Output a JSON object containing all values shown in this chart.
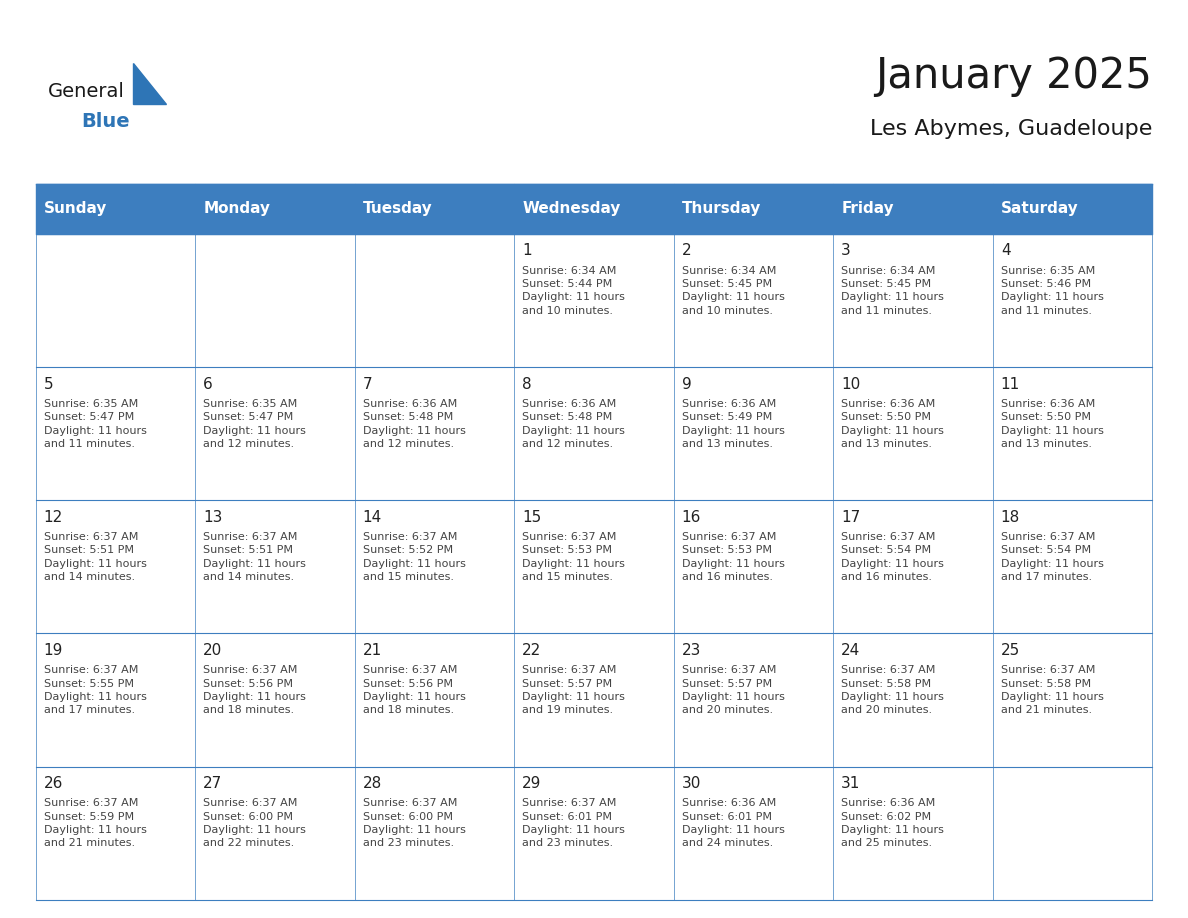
{
  "title": "January 2025",
  "subtitle": "Les Abymes, Guadeloupe",
  "days_of_week": [
    "Sunday",
    "Monday",
    "Tuesday",
    "Wednesday",
    "Thursday",
    "Friday",
    "Saturday"
  ],
  "header_bg_color": "#3d7ebf",
  "header_text_color": "#ffffff",
  "cell_bg_color": "#ffffff",
  "border_color": "#3d7ebf",
  "title_color": "#1a1a1a",
  "subtitle_color": "#1a1a1a",
  "weeks": [
    [
      {
        "day": 0,
        "info": ""
      },
      {
        "day": 0,
        "info": ""
      },
      {
        "day": 0,
        "info": ""
      },
      {
        "day": 1,
        "info": "Sunrise: 6:34 AM\nSunset: 5:44 PM\nDaylight: 11 hours\nand 10 minutes."
      },
      {
        "day": 2,
        "info": "Sunrise: 6:34 AM\nSunset: 5:45 PM\nDaylight: 11 hours\nand 10 minutes."
      },
      {
        "day": 3,
        "info": "Sunrise: 6:34 AM\nSunset: 5:45 PM\nDaylight: 11 hours\nand 11 minutes."
      },
      {
        "day": 4,
        "info": "Sunrise: 6:35 AM\nSunset: 5:46 PM\nDaylight: 11 hours\nand 11 minutes."
      }
    ],
    [
      {
        "day": 5,
        "info": "Sunrise: 6:35 AM\nSunset: 5:47 PM\nDaylight: 11 hours\nand 11 minutes."
      },
      {
        "day": 6,
        "info": "Sunrise: 6:35 AM\nSunset: 5:47 PM\nDaylight: 11 hours\nand 12 minutes."
      },
      {
        "day": 7,
        "info": "Sunrise: 6:36 AM\nSunset: 5:48 PM\nDaylight: 11 hours\nand 12 minutes."
      },
      {
        "day": 8,
        "info": "Sunrise: 6:36 AM\nSunset: 5:48 PM\nDaylight: 11 hours\nand 12 minutes."
      },
      {
        "day": 9,
        "info": "Sunrise: 6:36 AM\nSunset: 5:49 PM\nDaylight: 11 hours\nand 13 minutes."
      },
      {
        "day": 10,
        "info": "Sunrise: 6:36 AM\nSunset: 5:50 PM\nDaylight: 11 hours\nand 13 minutes."
      },
      {
        "day": 11,
        "info": "Sunrise: 6:36 AM\nSunset: 5:50 PM\nDaylight: 11 hours\nand 13 minutes."
      }
    ],
    [
      {
        "day": 12,
        "info": "Sunrise: 6:37 AM\nSunset: 5:51 PM\nDaylight: 11 hours\nand 14 minutes."
      },
      {
        "day": 13,
        "info": "Sunrise: 6:37 AM\nSunset: 5:51 PM\nDaylight: 11 hours\nand 14 minutes."
      },
      {
        "day": 14,
        "info": "Sunrise: 6:37 AM\nSunset: 5:52 PM\nDaylight: 11 hours\nand 15 minutes."
      },
      {
        "day": 15,
        "info": "Sunrise: 6:37 AM\nSunset: 5:53 PM\nDaylight: 11 hours\nand 15 minutes."
      },
      {
        "day": 16,
        "info": "Sunrise: 6:37 AM\nSunset: 5:53 PM\nDaylight: 11 hours\nand 16 minutes."
      },
      {
        "day": 17,
        "info": "Sunrise: 6:37 AM\nSunset: 5:54 PM\nDaylight: 11 hours\nand 16 minutes."
      },
      {
        "day": 18,
        "info": "Sunrise: 6:37 AM\nSunset: 5:54 PM\nDaylight: 11 hours\nand 17 minutes."
      }
    ],
    [
      {
        "day": 19,
        "info": "Sunrise: 6:37 AM\nSunset: 5:55 PM\nDaylight: 11 hours\nand 17 minutes."
      },
      {
        "day": 20,
        "info": "Sunrise: 6:37 AM\nSunset: 5:56 PM\nDaylight: 11 hours\nand 18 minutes."
      },
      {
        "day": 21,
        "info": "Sunrise: 6:37 AM\nSunset: 5:56 PM\nDaylight: 11 hours\nand 18 minutes."
      },
      {
        "day": 22,
        "info": "Sunrise: 6:37 AM\nSunset: 5:57 PM\nDaylight: 11 hours\nand 19 minutes."
      },
      {
        "day": 23,
        "info": "Sunrise: 6:37 AM\nSunset: 5:57 PM\nDaylight: 11 hours\nand 20 minutes."
      },
      {
        "day": 24,
        "info": "Sunrise: 6:37 AM\nSunset: 5:58 PM\nDaylight: 11 hours\nand 20 minutes."
      },
      {
        "day": 25,
        "info": "Sunrise: 6:37 AM\nSunset: 5:58 PM\nDaylight: 11 hours\nand 21 minutes."
      }
    ],
    [
      {
        "day": 26,
        "info": "Sunrise: 6:37 AM\nSunset: 5:59 PM\nDaylight: 11 hours\nand 21 minutes."
      },
      {
        "day": 27,
        "info": "Sunrise: 6:37 AM\nSunset: 6:00 PM\nDaylight: 11 hours\nand 22 minutes."
      },
      {
        "day": 28,
        "info": "Sunrise: 6:37 AM\nSunset: 6:00 PM\nDaylight: 11 hours\nand 23 minutes."
      },
      {
        "day": 29,
        "info": "Sunrise: 6:37 AM\nSunset: 6:01 PM\nDaylight: 11 hours\nand 23 minutes."
      },
      {
        "day": 30,
        "info": "Sunrise: 6:36 AM\nSunset: 6:01 PM\nDaylight: 11 hours\nand 24 minutes."
      },
      {
        "day": 31,
        "info": "Sunrise: 6:36 AM\nSunset: 6:02 PM\nDaylight: 11 hours\nand 25 minutes."
      },
      {
        "day": 0,
        "info": ""
      }
    ]
  ]
}
